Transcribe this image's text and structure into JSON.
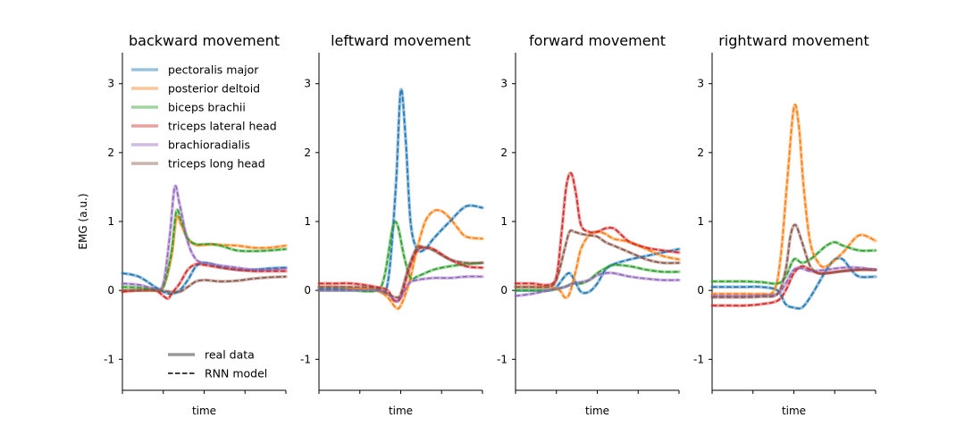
{
  "ylabel": "EMG (a.u.)",
  "xlabel": "time",
  "yticks": [
    -1,
    0,
    1,
    2,
    3
  ],
  "ylim": [
    -1.45,
    3.45
  ],
  "xlim": [
    0,
    1
  ],
  "muscles": [
    {
      "name": "pectoralis major",
      "color": "#1f77b4"
    },
    {
      "name": "posterior deltoid",
      "color": "#ff7f0e"
    },
    {
      "name": "biceps brachii",
      "color": "#2ca02c"
    },
    {
      "name": "triceps lateral head",
      "color": "#d62728"
    },
    {
      "name": "brachioradialis",
      "color": "#9467bd"
    },
    {
      "name": "triceps long head",
      "color": "#8c564b"
    }
  ],
  "style_legend": {
    "real": "real data",
    "model": "RNN model"
  },
  "chart_data": [
    {
      "type": "line",
      "title": "backward movement",
      "series": [
        {
          "name": "pectoralis major",
          "x": [
            0,
            0.1,
            0.2,
            0.25,
            0.3,
            0.35,
            0.4,
            0.45,
            0.5,
            0.55,
            0.6,
            0.7,
            0.8,
            0.9,
            1
          ],
          "values": [
            0.25,
            0.2,
            0.05,
            -0.02,
            -0.05,
            0.0,
            0.15,
            0.35,
            0.4,
            0.38,
            0.34,
            0.3,
            0.3,
            0.32,
            0.33
          ]
        },
        {
          "name": "posterior deltoid",
          "x": [
            0,
            0.1,
            0.2,
            0.25,
            0.3,
            0.33,
            0.36,
            0.4,
            0.45,
            0.5,
            0.55,
            0.6,
            0.7,
            0.8,
            0.9,
            1
          ],
          "values": [
            0.0,
            0.0,
            0.0,
            0.05,
            0.5,
            1.05,
            0.95,
            0.75,
            0.66,
            0.66,
            0.67,
            0.66,
            0.65,
            0.62,
            0.62,
            0.65
          ]
        },
        {
          "name": "biceps brachii",
          "x": [
            0,
            0.1,
            0.2,
            0.25,
            0.3,
            0.33,
            0.36,
            0.4,
            0.45,
            0.5,
            0.55,
            0.6,
            0.7,
            0.8,
            0.9,
            1
          ],
          "values": [
            0.05,
            0.04,
            0.02,
            0.05,
            0.55,
            1.15,
            1.0,
            0.75,
            0.67,
            0.67,
            0.67,
            0.65,
            0.58,
            0.57,
            0.58,
            0.6
          ]
        },
        {
          "name": "triceps lateral head",
          "x": [
            0,
            0.1,
            0.2,
            0.25,
            0.28,
            0.3,
            0.35,
            0.4,
            0.45,
            0.5,
            0.55,
            0.6,
            0.7,
            0.8,
            0.9,
            1
          ],
          "values": [
            -0.02,
            0.0,
            0.0,
            -0.08,
            -0.12,
            -0.05,
            0.1,
            0.3,
            0.38,
            0.37,
            0.35,
            0.33,
            0.3,
            0.28,
            0.28,
            0.28
          ]
        },
        {
          "name": "brachioradialis",
          "x": [
            0,
            0.1,
            0.2,
            0.25,
            0.29,
            0.32,
            0.35,
            0.4,
            0.45,
            0.5,
            0.55,
            0.6,
            0.7,
            0.8,
            0.9,
            1
          ],
          "values": [
            0.1,
            0.08,
            0.03,
            0.1,
            0.8,
            1.5,
            1.25,
            0.7,
            0.45,
            0.4,
            0.38,
            0.36,
            0.33,
            0.3,
            0.3,
            0.32
          ]
        },
        {
          "name": "triceps long head",
          "x": [
            0,
            0.1,
            0.2,
            0.3,
            0.35,
            0.4,
            0.45,
            0.5,
            0.55,
            0.6,
            0.7,
            0.8,
            0.9,
            1
          ],
          "values": [
            0.0,
            0.0,
            0.0,
            -0.02,
            -0.02,
            0.05,
            0.13,
            0.15,
            0.14,
            0.13,
            0.14,
            0.17,
            0.19,
            0.2
          ]
        }
      ]
    },
    {
      "type": "line",
      "title": "leftward movement",
      "series": [
        {
          "name": "pectoralis major",
          "x": [
            0,
            0.1,
            0.2,
            0.35,
            0.42,
            0.47,
            0.5,
            0.53,
            0.56,
            0.6,
            0.65,
            0.7,
            0.8,
            0.9,
            1
          ],
          "values": [
            0.02,
            0.02,
            0.02,
            0.0,
            0.1,
            1.5,
            2.9,
            2.2,
            1.0,
            0.6,
            0.6,
            0.75,
            1.0,
            1.22,
            1.2
          ]
        },
        {
          "name": "posterior deltoid",
          "x": [
            0,
            0.1,
            0.2,
            0.35,
            0.42,
            0.47,
            0.5,
            0.55,
            0.6,
            0.65,
            0.7,
            0.75,
            0.8,
            0.85,
            0.9,
            1
          ],
          "values": [
            0.05,
            0.05,
            0.03,
            0.0,
            -0.1,
            -0.25,
            -0.22,
            0.1,
            0.6,
            1.0,
            1.15,
            1.15,
            1.05,
            0.9,
            0.78,
            0.75
          ]
        },
        {
          "name": "biceps brachii",
          "x": [
            0,
            0.1,
            0.2,
            0.35,
            0.4,
            0.45,
            0.48,
            0.52,
            0.56,
            0.6,
            0.7,
            0.8,
            0.9,
            1
          ],
          "values": [
            0.0,
            0.0,
            0.0,
            0.0,
            0.2,
            0.9,
            0.95,
            0.5,
            0.18,
            0.2,
            0.3,
            0.35,
            0.38,
            0.4
          ]
        },
        {
          "name": "triceps lateral head",
          "x": [
            0,
            0.1,
            0.2,
            0.35,
            0.42,
            0.46,
            0.5,
            0.55,
            0.6,
            0.65,
            0.7,
            0.8,
            0.9,
            1
          ],
          "values": [
            0.1,
            0.1,
            0.1,
            0.05,
            0.0,
            -0.15,
            -0.1,
            0.3,
            0.58,
            0.62,
            0.6,
            0.45,
            0.35,
            0.33
          ]
        },
        {
          "name": "brachioradialis",
          "x": [
            0,
            0.1,
            0.2,
            0.35,
            0.42,
            0.47,
            0.5,
            0.55,
            0.6,
            0.7,
            0.8,
            0.9,
            1
          ],
          "values": [
            0.0,
            0.0,
            0.0,
            0.0,
            -0.05,
            -0.15,
            -0.1,
            0.1,
            0.15,
            0.18,
            0.18,
            0.2,
            0.2
          ]
        },
        {
          "name": "triceps long head",
          "x": [
            0,
            0.1,
            0.2,
            0.35,
            0.42,
            0.47,
            0.5,
            0.55,
            0.6,
            0.65,
            0.7,
            0.8,
            0.9,
            1
          ],
          "values": [
            0.05,
            0.05,
            0.05,
            0.03,
            -0.05,
            -0.1,
            -0.05,
            0.35,
            0.62,
            0.62,
            0.58,
            0.45,
            0.4,
            0.4
          ]
        }
      ]
    },
    {
      "type": "line",
      "title": "forward movement",
      "series": [
        {
          "name": "pectoralis major",
          "x": [
            0,
            0.1,
            0.2,
            0.25,
            0.3,
            0.33,
            0.36,
            0.4,
            0.45,
            0.5,
            0.55,
            0.6,
            0.7,
            0.8,
            0.9,
            1
          ],
          "values": [
            0.0,
            0.0,
            0.0,
            0.05,
            0.2,
            0.25,
            0.15,
            -0.02,
            -0.02,
            0.1,
            0.3,
            0.38,
            0.45,
            0.5,
            0.55,
            0.6
          ]
        },
        {
          "name": "posterior deltoid",
          "x": [
            0,
            0.1,
            0.2,
            0.27,
            0.3,
            0.33,
            0.37,
            0.4,
            0.45,
            0.5,
            0.55,
            0.6,
            0.7,
            0.8,
            0.9,
            1
          ],
          "values": [
            0.05,
            0.05,
            0.05,
            0.0,
            -0.1,
            -0.05,
            0.3,
            0.6,
            0.8,
            0.85,
            0.82,
            0.75,
            0.7,
            0.6,
            0.5,
            0.45
          ]
        },
        {
          "name": "biceps brachii",
          "x": [
            0,
            0.1,
            0.2,
            0.3,
            0.35,
            0.4,
            0.45,
            0.5,
            0.55,
            0.6,
            0.7,
            0.8,
            0.9,
            1
          ],
          "values": [
            0.0,
            0.0,
            0.0,
            0.05,
            0.1,
            0.1,
            0.15,
            0.25,
            0.32,
            0.37,
            0.35,
            0.3,
            0.27,
            0.27
          ]
        },
        {
          "name": "triceps lateral head",
          "x": [
            0,
            0.1,
            0.2,
            0.25,
            0.28,
            0.31,
            0.34,
            0.37,
            0.4,
            0.45,
            0.5,
            0.55,
            0.6,
            0.65,
            0.7,
            0.8,
            0.9,
            1
          ],
          "values": [
            0.1,
            0.1,
            0.08,
            0.2,
            0.8,
            1.5,
            1.7,
            1.4,
            0.95,
            0.85,
            0.85,
            0.9,
            0.9,
            0.8,
            0.7,
            0.62,
            0.58,
            0.55
          ]
        },
        {
          "name": "brachioradialis",
          "x": [
            0,
            0.1,
            0.2,
            0.3,
            0.35,
            0.4,
            0.45,
            0.5,
            0.55,
            0.6,
            0.7,
            0.8,
            0.9,
            1
          ],
          "values": [
            -0.08,
            -0.05,
            0.0,
            0.05,
            0.1,
            0.12,
            0.15,
            0.22,
            0.25,
            0.25,
            0.2,
            0.17,
            0.15,
            0.15
          ]
        },
        {
          "name": "triceps long head",
          "x": [
            0,
            0.1,
            0.2,
            0.25,
            0.3,
            0.33,
            0.36,
            0.4,
            0.45,
            0.5,
            0.55,
            0.6,
            0.7,
            0.8,
            0.9,
            1
          ],
          "values": [
            0.05,
            0.05,
            0.05,
            0.15,
            0.6,
            0.85,
            0.85,
            0.82,
            0.8,
            0.78,
            0.7,
            0.65,
            0.55,
            0.45,
            0.4,
            0.4
          ]
        }
      ]
    },
    {
      "type": "line",
      "title": "rightward movement",
      "series": [
        {
          "name": "pectoralis major",
          "x": [
            0,
            0.1,
            0.2,
            0.3,
            0.4,
            0.45,
            0.5,
            0.55,
            0.6,
            0.65,
            0.7,
            0.75,
            0.8,
            0.85,
            0.9,
            1
          ],
          "values": [
            0.05,
            0.05,
            0.05,
            0.05,
            0.0,
            -0.2,
            -0.25,
            -0.25,
            -0.1,
            0.1,
            0.3,
            0.45,
            0.45,
            0.3,
            0.2,
            0.2
          ]
        },
        {
          "name": "posterior deltoid",
          "x": [
            0,
            0.1,
            0.2,
            0.3,
            0.38,
            0.42,
            0.46,
            0.5,
            0.53,
            0.56,
            0.6,
            0.65,
            0.7,
            0.8,
            0.9,
            1
          ],
          "values": [
            -0.05,
            -0.05,
            -0.05,
            -0.05,
            0.0,
            0.5,
            1.6,
            2.65,
            2.4,
            1.5,
            0.7,
            0.4,
            0.35,
            0.55,
            0.8,
            0.72
          ]
        },
        {
          "name": "biceps brachii",
          "x": [
            0,
            0.1,
            0.2,
            0.3,
            0.4,
            0.45,
            0.5,
            0.55,
            0.6,
            0.65,
            0.7,
            0.75,
            0.8,
            0.9,
            1
          ],
          "values": [
            0.13,
            0.13,
            0.13,
            0.12,
            0.1,
            0.2,
            0.45,
            0.4,
            0.45,
            0.55,
            0.65,
            0.7,
            0.65,
            0.58,
            0.58
          ]
        },
        {
          "name": "triceps lateral head",
          "x": [
            0,
            0.1,
            0.2,
            0.3,
            0.4,
            0.45,
            0.5,
            0.55,
            0.6,
            0.65,
            0.7,
            0.8,
            0.9,
            1
          ],
          "values": [
            -0.22,
            -0.22,
            -0.22,
            -0.2,
            -0.15,
            0.0,
            0.25,
            0.35,
            0.3,
            0.25,
            0.25,
            0.28,
            0.3,
            0.3
          ]
        },
        {
          "name": "brachioradialis",
          "x": [
            0,
            0.1,
            0.2,
            0.3,
            0.4,
            0.45,
            0.5,
            0.55,
            0.6,
            0.7,
            0.8,
            0.9,
            1
          ],
          "values": [
            -0.08,
            -0.08,
            -0.08,
            -0.07,
            -0.05,
            0.1,
            0.3,
            0.32,
            0.28,
            0.3,
            0.33,
            0.33,
            0.3
          ]
        },
        {
          "name": "triceps long head",
          "x": [
            0,
            0.1,
            0.2,
            0.3,
            0.4,
            0.45,
            0.48,
            0.51,
            0.55,
            0.6,
            0.65,
            0.7,
            0.8,
            0.9,
            1
          ],
          "values": [
            -0.1,
            -0.1,
            -0.1,
            -0.09,
            -0.05,
            0.3,
            0.8,
            0.95,
            0.7,
            0.35,
            0.25,
            0.25,
            0.28,
            0.3,
            0.3
          ]
        }
      ]
    }
  ]
}
